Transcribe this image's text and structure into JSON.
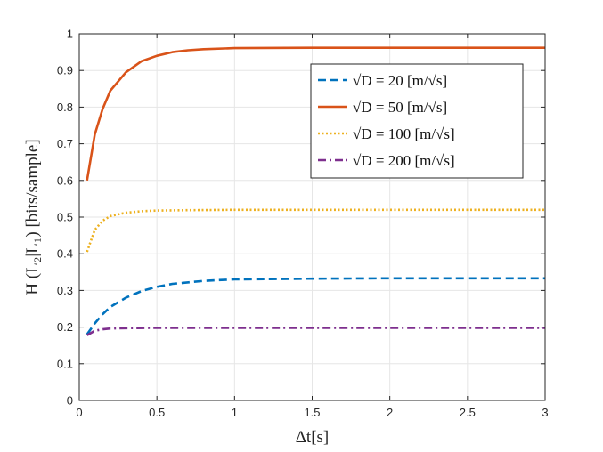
{
  "chart_data": {
    "type": "line",
    "xlabel": "Δt[s]",
    "ylabel": "H (L₂|L₁) [bits/sample]",
    "xlim": [
      0,
      3
    ],
    "ylim": [
      0,
      1
    ],
    "xticks": [
      "0",
      "0.5",
      "1",
      "1.5",
      "2",
      "2.5",
      "3"
    ],
    "yticks": [
      "0",
      "0.1",
      "0.2",
      "0.3",
      "0.4",
      "0.5",
      "0.6",
      "0.7",
      "0.8",
      "0.9",
      "1"
    ],
    "grid": true,
    "legend_position": "top-right",
    "series": [
      {
        "name": "√D = 20 [m/√s]",
        "color": "#0072BD",
        "style": "dashed",
        "x": [
          0.05,
          0.1,
          0.15,
          0.2,
          0.3,
          0.4,
          0.5,
          0.6,
          0.8,
          1.0,
          1.5,
          2.0,
          2.5,
          3.0
        ],
        "y": [
          0.18,
          0.21,
          0.235,
          0.255,
          0.28,
          0.298,
          0.31,
          0.318,
          0.326,
          0.33,
          0.332,
          0.333,
          0.333,
          0.333
        ]
      },
      {
        "name": "√D = 50 [m/√s]",
        "color": "#D95319",
        "style": "solid",
        "x": [
          0.05,
          0.1,
          0.15,
          0.2,
          0.3,
          0.4,
          0.5,
          0.6,
          0.7,
          0.8,
          1.0,
          1.5,
          2.0,
          2.5,
          3.0
        ],
        "y": [
          0.6,
          0.725,
          0.795,
          0.845,
          0.895,
          0.925,
          0.94,
          0.95,
          0.955,
          0.958,
          0.961,
          0.962,
          0.962,
          0.962,
          0.962
        ]
      },
      {
        "name": "√D = 100 [m/√s]",
        "color": "#EDB120",
        "style": "dotted",
        "x": [
          0.05,
          0.1,
          0.15,
          0.2,
          0.3,
          0.4,
          0.5,
          0.7,
          1.0,
          1.5,
          2.0,
          2.5,
          3.0
        ],
        "y": [
          0.405,
          0.465,
          0.49,
          0.503,
          0.512,
          0.516,
          0.518,
          0.519,
          0.52,
          0.52,
          0.52,
          0.52,
          0.52
        ]
      },
      {
        "name": "√D = 200 [m/√s]",
        "color": "#7E2F8E",
        "style": "dashdot",
        "x": [
          0.05,
          0.1,
          0.15,
          0.2,
          0.3,
          0.5,
          1.0,
          1.5,
          2.0,
          2.5,
          3.0
        ],
        "y": [
          0.178,
          0.19,
          0.194,
          0.196,
          0.197,
          0.198,
          0.198,
          0.198,
          0.198,
          0.198,
          0.198
        ]
      }
    ]
  }
}
